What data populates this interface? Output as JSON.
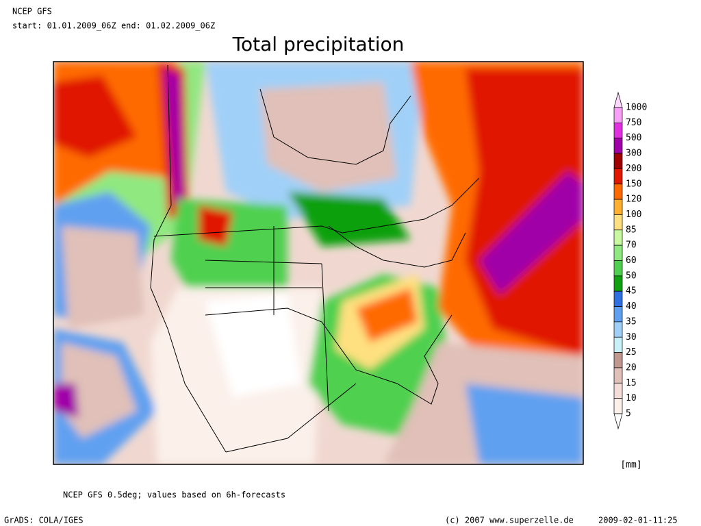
{
  "header": {
    "model": "NCEP GFS",
    "period": "start: 01.01.2009_06Z end: 01.02.2009_06Z"
  },
  "title": "Total precipitation",
  "legend": {
    "levels": [
      1000,
      750,
      500,
      300,
      200,
      150,
      120,
      100,
      85,
      70,
      60,
      50,
      45,
      40,
      35,
      30,
      25,
      20,
      15,
      10,
      5
    ],
    "colors": [
      "#ffd8ff",
      "#f8a0f8",
      "#e030e0",
      "#a000a8",
      "#a00000",
      "#e01800",
      "#ff6a00",
      "#ffb030",
      "#ffe080",
      "#c8f8a0",
      "#90e880",
      "#50d050",
      "#10a010",
      "#3070e0",
      "#60a0f0",
      "#a0d0f8",
      "#c8f0f8",
      "#c09890",
      "#e0c0b8",
      "#f4dcd8",
      "#fbf0ea",
      "#ffffff"
    ],
    "unit": "[mm]"
  },
  "footer": {
    "note": "NCEP GFS 0.5deg; values based on 6h-forecasts",
    "software": "GrADS: COLA/IGES",
    "copyright": "(c) 2007 www.superzelle.de",
    "timestamp": "2009-02-01-11:25"
  }
}
